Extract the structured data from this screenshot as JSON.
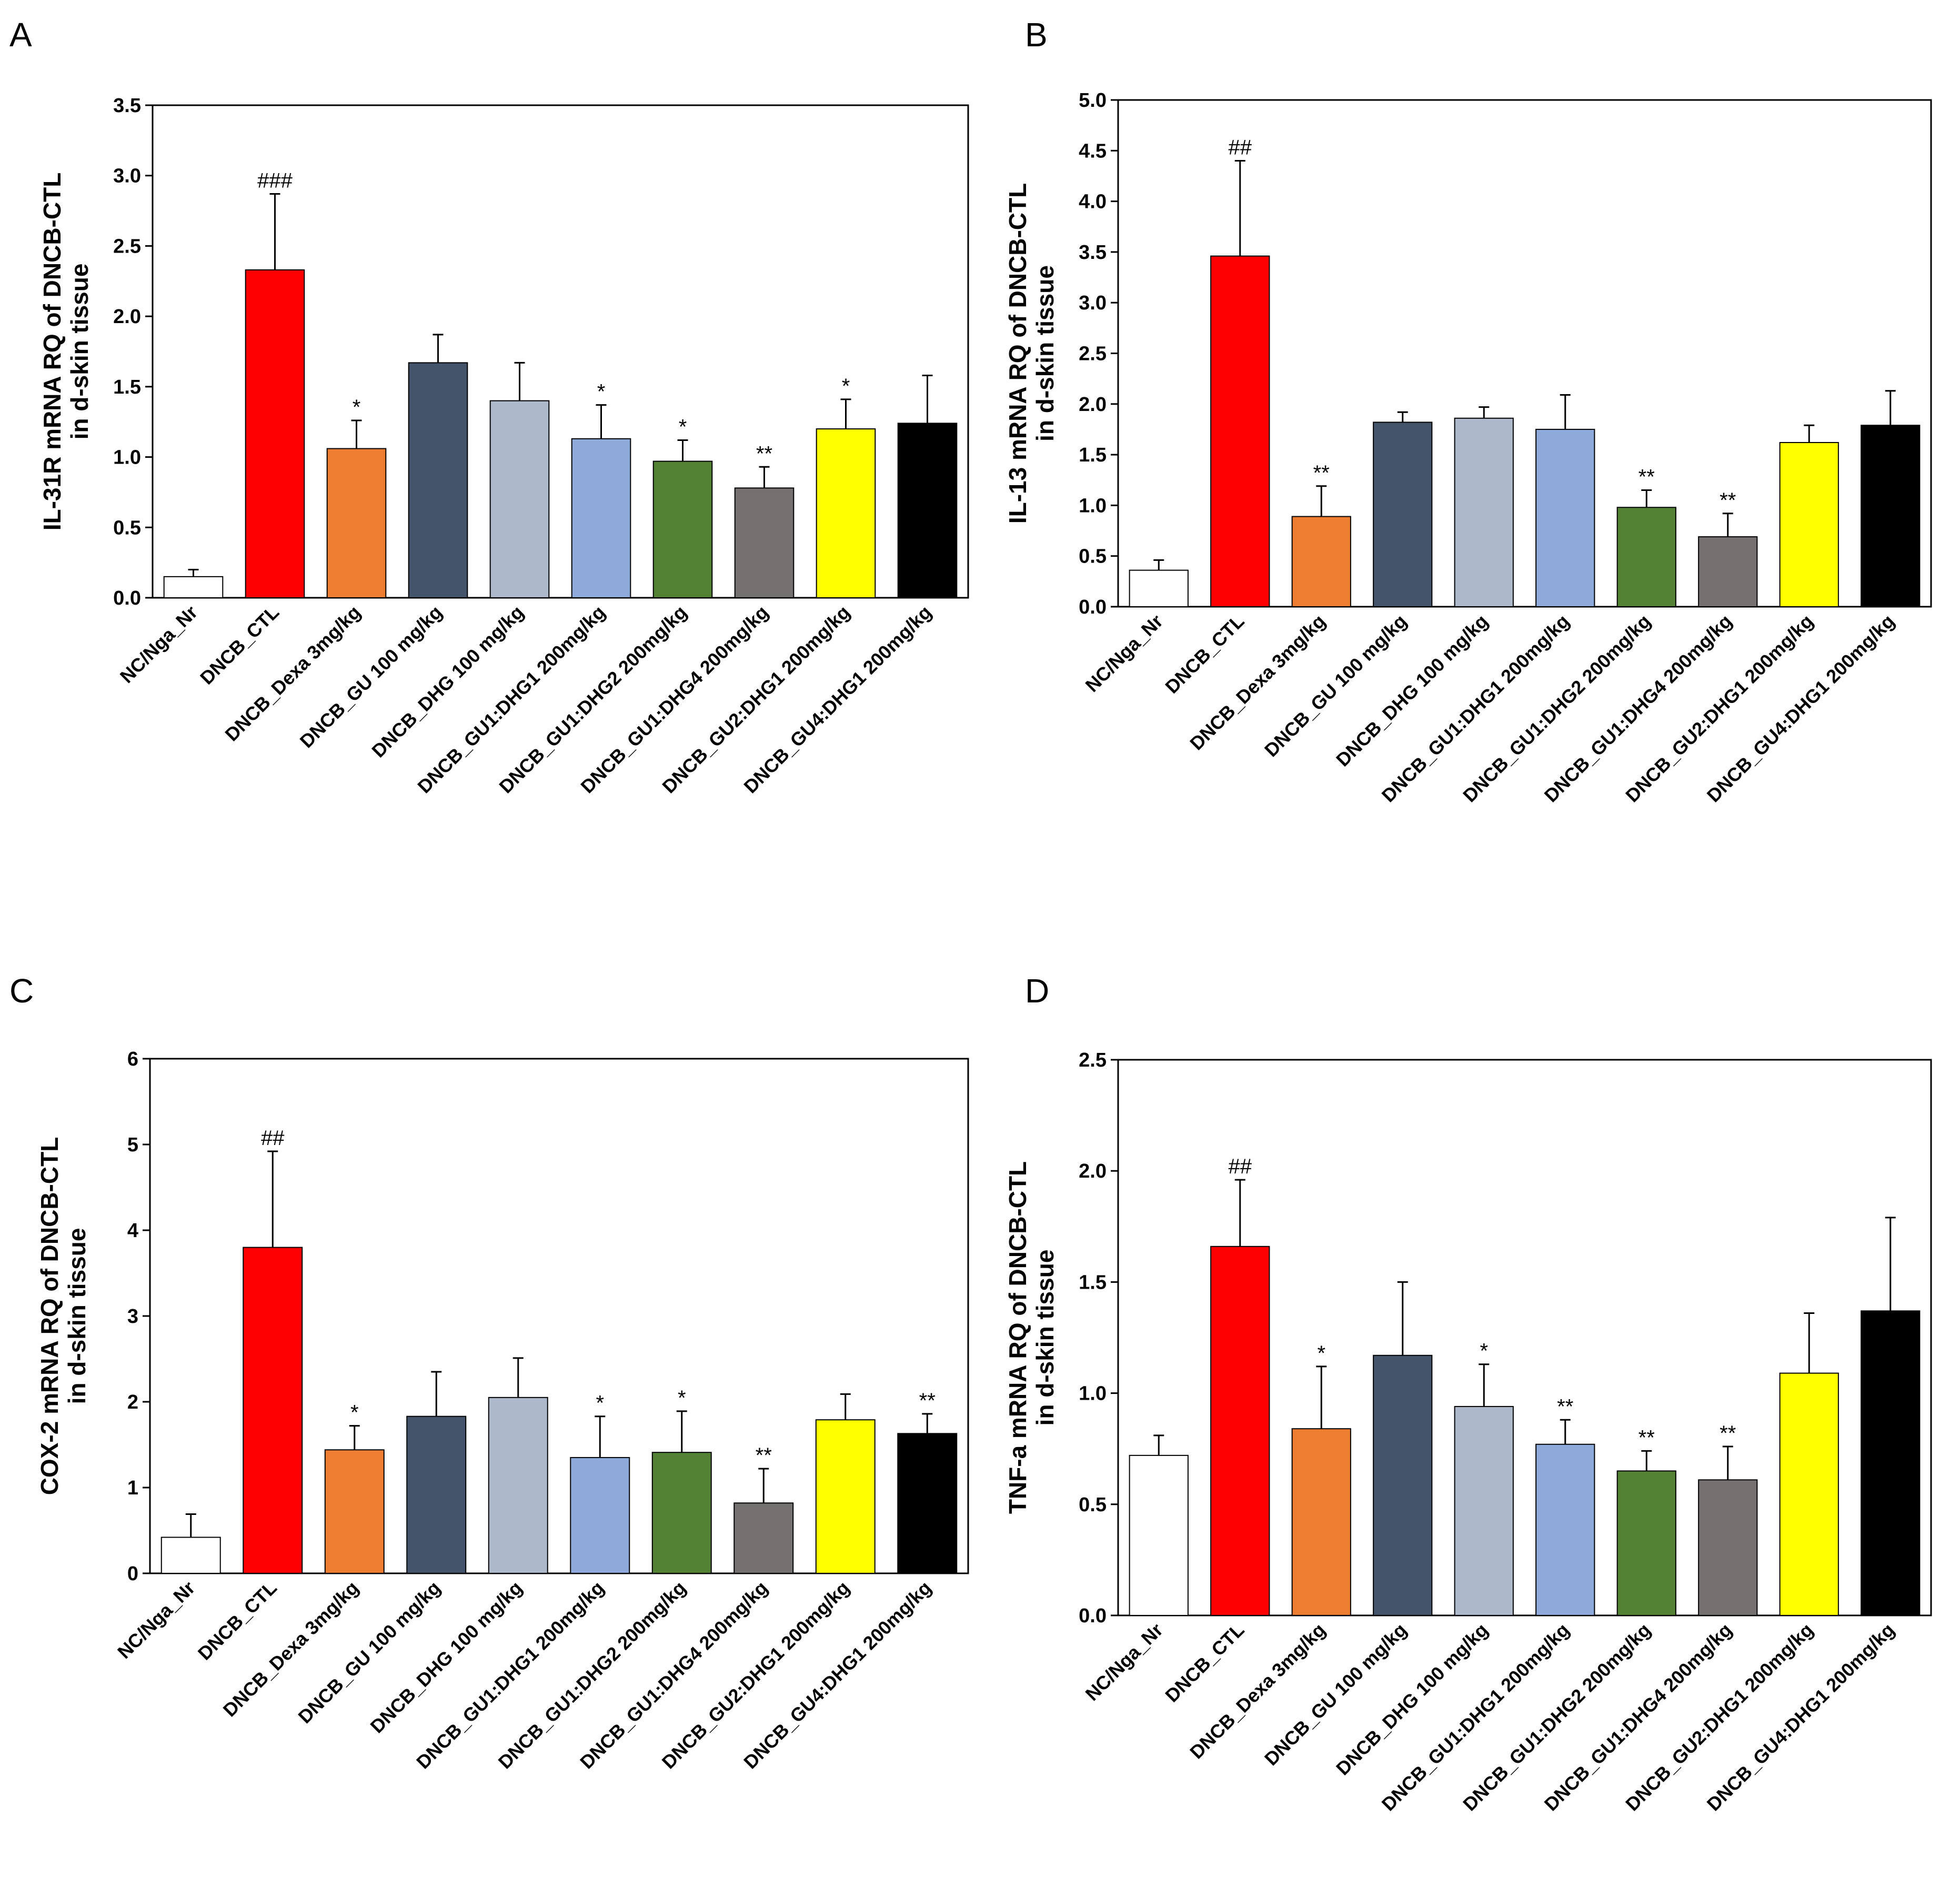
{
  "groups": [
    "NC/Nga_Nr",
    "DNCB_CTL",
    "DNCB_Dexa 3mg/kg",
    "DNCB_GU 100 mg/kg",
    "DNCB_DHG 100 mg/kg",
    "DNCB_GU1:DHG1 200mg/kg",
    "DNCB_GU1:DHG2 200mg/kg",
    "DNCB_GU1:DHG4 200mg/kg",
    "DNCB_GU2:DHG1 200mg/kg",
    "DNCB_GU4:DHG1 200mg/kg"
  ],
  "colors": [
    "#ffffff",
    "#ff0000",
    "#ed7d31",
    "#44546a",
    "#adb9ca",
    "#8eaadb",
    "#548235",
    "#767171",
    "#ffff00",
    "#000000"
  ],
  "chart_data": [
    {
      "panel": "A",
      "type": "bar",
      "ylabel_line1": "IL-31R mRNA RQ of DNCB-CTL",
      "ylabel_line2": "in d-skin tissue",
      "ylim": [
        0,
        3.5
      ],
      "yticks": [
        "0.0",
        "0.5",
        "1.0",
        "1.5",
        "2.0",
        "2.5",
        "3.0",
        "3.5"
      ],
      "values": [
        0.15,
        2.33,
        1.06,
        1.67,
        1.4,
        1.13,
        0.97,
        0.78,
        1.2,
        1.24
      ],
      "errors": [
        0.05,
        0.54,
        0.2,
        0.2,
        0.27,
        0.24,
        0.15,
        0.15,
        0.21,
        0.34
      ],
      "annotations": [
        "",
        "###",
        "*",
        "",
        "",
        "*",
        "*",
        "**",
        "*",
        ""
      ]
    },
    {
      "panel": "B",
      "type": "bar",
      "ylabel_line1": "IL-13 mRNA RQ of DNCB-CTL",
      "ylabel_line2": "in d-skin tissue",
      "ylim": [
        0,
        5
      ],
      "yticks": [
        "0.0",
        "0.5",
        "1.0",
        "1.5",
        "2.0",
        "2.5",
        "3.0",
        "3.5",
        "4.0",
        "4.5",
        "5.0"
      ],
      "values": [
        0.36,
        3.46,
        0.89,
        1.82,
        1.86,
        1.75,
        0.98,
        0.69,
        1.62,
        1.79
      ],
      "errors": [
        0.1,
        0.94,
        0.3,
        0.1,
        0.11,
        0.34,
        0.17,
        0.23,
        0.17,
        0.34
      ],
      "annotations": [
        "",
        "##",
        "**",
        "",
        "",
        "",
        "**",
        "**",
        "",
        ""
      ]
    },
    {
      "panel": "C",
      "type": "bar",
      "ylabel_line1": "COX-2 mRNA RQ of DNCB-CTL",
      "ylabel_line2": "in d-skin tissue",
      "ylim": [
        0,
        6
      ],
      "yticks": [
        "0",
        "1",
        "2",
        "3",
        "4",
        "5",
        "6"
      ],
      "values": [
        0.42,
        3.8,
        1.44,
        1.83,
        2.05,
        1.35,
        1.41,
        0.82,
        1.79,
        1.63
      ],
      "errors": [
        0.27,
        1.12,
        0.28,
        0.52,
        0.46,
        0.48,
        0.48,
        0.4,
        0.3,
        0.23
      ],
      "annotations": [
        "",
        "##",
        "*",
        "",
        "",
        "*",
        "*",
        "**",
        "",
        "**"
      ]
    },
    {
      "panel": "D",
      "type": "bar",
      "ylabel_line1": "TNF-a mRNA RQ of DNCB-CTL",
      "ylabel_line2": "in d-skin tissue",
      "ylim": [
        0,
        2.5
      ],
      "yticks": [
        "0.0",
        "0.5",
        "1.0",
        "1.5",
        "2.0",
        "2.5"
      ],
      "values": [
        0.72,
        1.66,
        0.84,
        1.17,
        0.94,
        0.77,
        0.65,
        0.61,
        1.09,
        1.37
      ],
      "errors": [
        0.09,
        0.3,
        0.28,
        0.33,
        0.19,
        0.11,
        0.09,
        0.15,
        0.27,
        0.42
      ],
      "annotations": [
        "",
        "##",
        "*",
        "",
        "*",
        "**",
        "**",
        "**",
        "",
        ""
      ]
    }
  ]
}
